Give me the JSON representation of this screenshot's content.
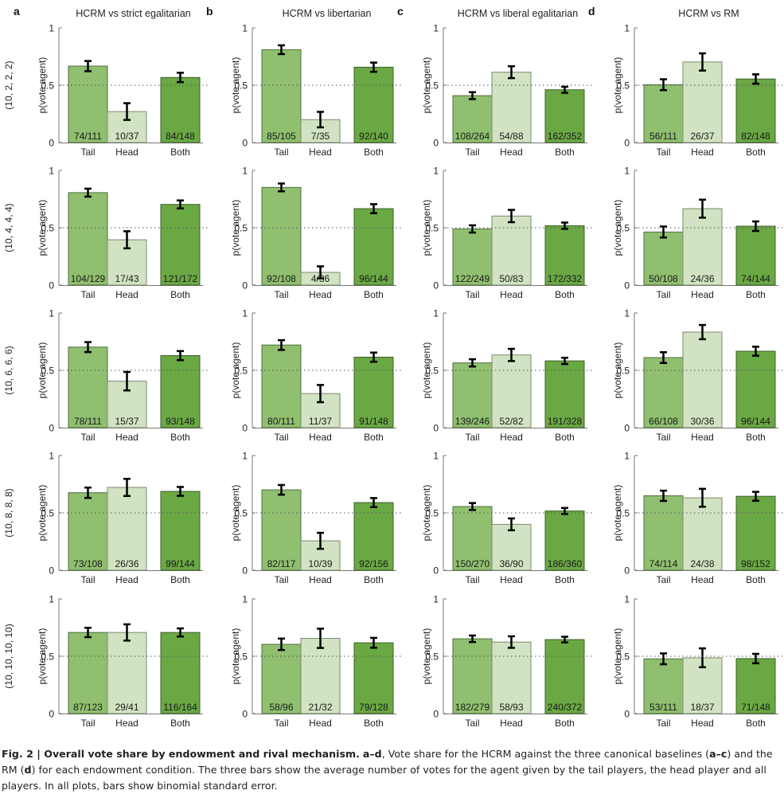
{
  "chart_data": {
    "type": "bar",
    "layout": "grid of 5 rows x 4 columns of bar charts",
    "ylabel": "p(vote agent)",
    "ylim": [
      0,
      1
    ],
    "yticks": [
      0,
      0.5,
      1
    ],
    "ytick_labels": [
      "0",
      "0.5",
      "1"
    ],
    "reference_line": {
      "y": 0.5,
      "style": "dotted"
    },
    "grid": false,
    "categories": [
      "Tail",
      "Head",
      "Both"
    ],
    "category_colors": {
      "Tail": "#8fbf6f",
      "Head": "#d1e3c2",
      "Both": "#6aa843"
    },
    "error_bars": "binomial standard error",
    "columns": [
      {
        "letter": "a",
        "title": "HCRM vs strict egalitarian"
      },
      {
        "letter": "b",
        "title": "HCRM vs libertarian"
      },
      {
        "letter": "c",
        "title": "HCRM vs liberal egalitarian"
      },
      {
        "letter": "d",
        "title": "HCRM vs RM"
      }
    ],
    "rows": [
      {
        "endowment": "(10, 2, 2, 2)"
      },
      {
        "endowment": "(10, 4, 4, 4)"
      },
      {
        "endowment": "(10, 6, 6, 6)"
      },
      {
        "endowment": "(10, 8, 8, 8)"
      },
      {
        "endowment": "(10, 10, 10, 10)"
      }
    ],
    "panels": [
      [
        {
          "labels": [
            "74/111",
            "10/37",
            "84/148"
          ],
          "votes": [
            [
              74,
              111
            ],
            [
              10,
              37
            ],
            [
              84,
              148
            ]
          ]
        },
        {
          "labels": [
            "85/105",
            "7/35",
            "92/140"
          ],
          "votes": [
            [
              85,
              105
            ],
            [
              7,
              35
            ],
            [
              92,
              140
            ]
          ]
        },
        {
          "labels": [
            "108/264",
            "54/88",
            "162/352"
          ],
          "votes": [
            [
              108,
              264
            ],
            [
              54,
              88
            ],
            [
              162,
              352
            ]
          ]
        },
        {
          "labels": [
            "56/111",
            "26/37",
            "82/148"
          ],
          "votes": [
            [
              56,
              111
            ],
            [
              26,
              37
            ],
            [
              82,
              148
            ]
          ]
        }
      ],
      [
        {
          "labels": [
            "104/129",
            "17/43",
            "121/172"
          ],
          "votes": [
            [
              104,
              129
            ],
            [
              17,
              43
            ],
            [
              121,
              172
            ]
          ]
        },
        {
          "labels": [
            "92/108",
            "4/36",
            "96/144"
          ],
          "votes": [
            [
              92,
              108
            ],
            [
              4,
              36
            ],
            [
              96,
              144
            ]
          ]
        },
        {
          "labels": [
            "122/249",
            "50/83",
            "172/332"
          ],
          "votes": [
            [
              122,
              249
            ],
            [
              50,
              83
            ],
            [
              172,
              332
            ]
          ]
        },
        {
          "labels": [
            "50/108",
            "24/36",
            "74/144"
          ],
          "votes": [
            [
              50,
              108
            ],
            [
              24,
              36
            ],
            [
              74,
              144
            ]
          ]
        }
      ],
      [
        {
          "labels": [
            "78/111",
            "15/37",
            "93/148"
          ],
          "votes": [
            [
              78,
              111
            ],
            [
              15,
              37
            ],
            [
              93,
              148
            ]
          ]
        },
        {
          "labels": [
            "80/111",
            "11/37",
            "91/148"
          ],
          "votes": [
            [
              80,
              111
            ],
            [
              11,
              37
            ],
            [
              91,
              148
            ]
          ]
        },
        {
          "labels": [
            "139/246",
            "52/82",
            "191/328"
          ],
          "votes": [
            [
              139,
              246
            ],
            [
              52,
              82
            ],
            [
              191,
              328
            ]
          ]
        },
        {
          "labels": [
            "66/108",
            "30/36",
            "96/144"
          ],
          "votes": [
            [
              66,
              108
            ],
            [
              30,
              36
            ],
            [
              96,
              144
            ]
          ]
        }
      ],
      [
        {
          "labels": [
            "73/108",
            "26/36",
            "99/144"
          ],
          "votes": [
            [
              73,
              108
            ],
            [
              26,
              36
            ],
            [
              99,
              144
            ]
          ]
        },
        {
          "labels": [
            "82/117",
            "10/39",
            "92/156"
          ],
          "votes": [
            [
              82,
              117
            ],
            [
              10,
              39
            ],
            [
              92,
              156
            ]
          ]
        },
        {
          "labels": [
            "150/270",
            "36/90",
            "186/360"
          ],
          "votes": [
            [
              150,
              270
            ],
            [
              36,
              90
            ],
            [
              186,
              360
            ]
          ]
        },
        {
          "labels": [
            "74/114",
            "24/38",
            "98/152"
          ],
          "votes": [
            [
              74,
              114
            ],
            [
              24,
              38
            ],
            [
              98,
              152
            ]
          ]
        }
      ],
      [
        {
          "labels": [
            "87/123",
            "29/41",
            "116/164"
          ],
          "votes": [
            [
              87,
              123
            ],
            [
              29,
              41
            ],
            [
              116,
              164
            ]
          ]
        },
        {
          "labels": [
            "58/96",
            "21/32",
            "79/128"
          ],
          "votes": [
            [
              58,
              96
            ],
            [
              21,
              32
            ],
            [
              79,
              128
            ]
          ]
        },
        {
          "labels": [
            "182/279",
            "58/93",
            "240/372"
          ],
          "votes": [
            [
              182,
              279
            ],
            [
              58,
              93
            ],
            [
              240,
              372
            ]
          ]
        },
        {
          "labels": [
            "53/111",
            "18/37",
            "71/148"
          ],
          "votes": [
            [
              53,
              111
            ],
            [
              18,
              37
            ],
            [
              71,
              148
            ]
          ]
        }
      ]
    ]
  },
  "caption": {
    "label": "Fig. 2 | Overall vote share by endowment and rival mechanism.",
    "range_bold": "a–d",
    "text_1": ", Vote share for the HCRM against the three canonical baselines (",
    "abc_bold": "a–c",
    "text_2": ") and the RM (",
    "d_bold": "d",
    "text_3": ") for each endowment condition. The three bars show the average number of votes for the agent given by the tail players, the head player and all players. In all plots, bars show binomial standard error."
  }
}
